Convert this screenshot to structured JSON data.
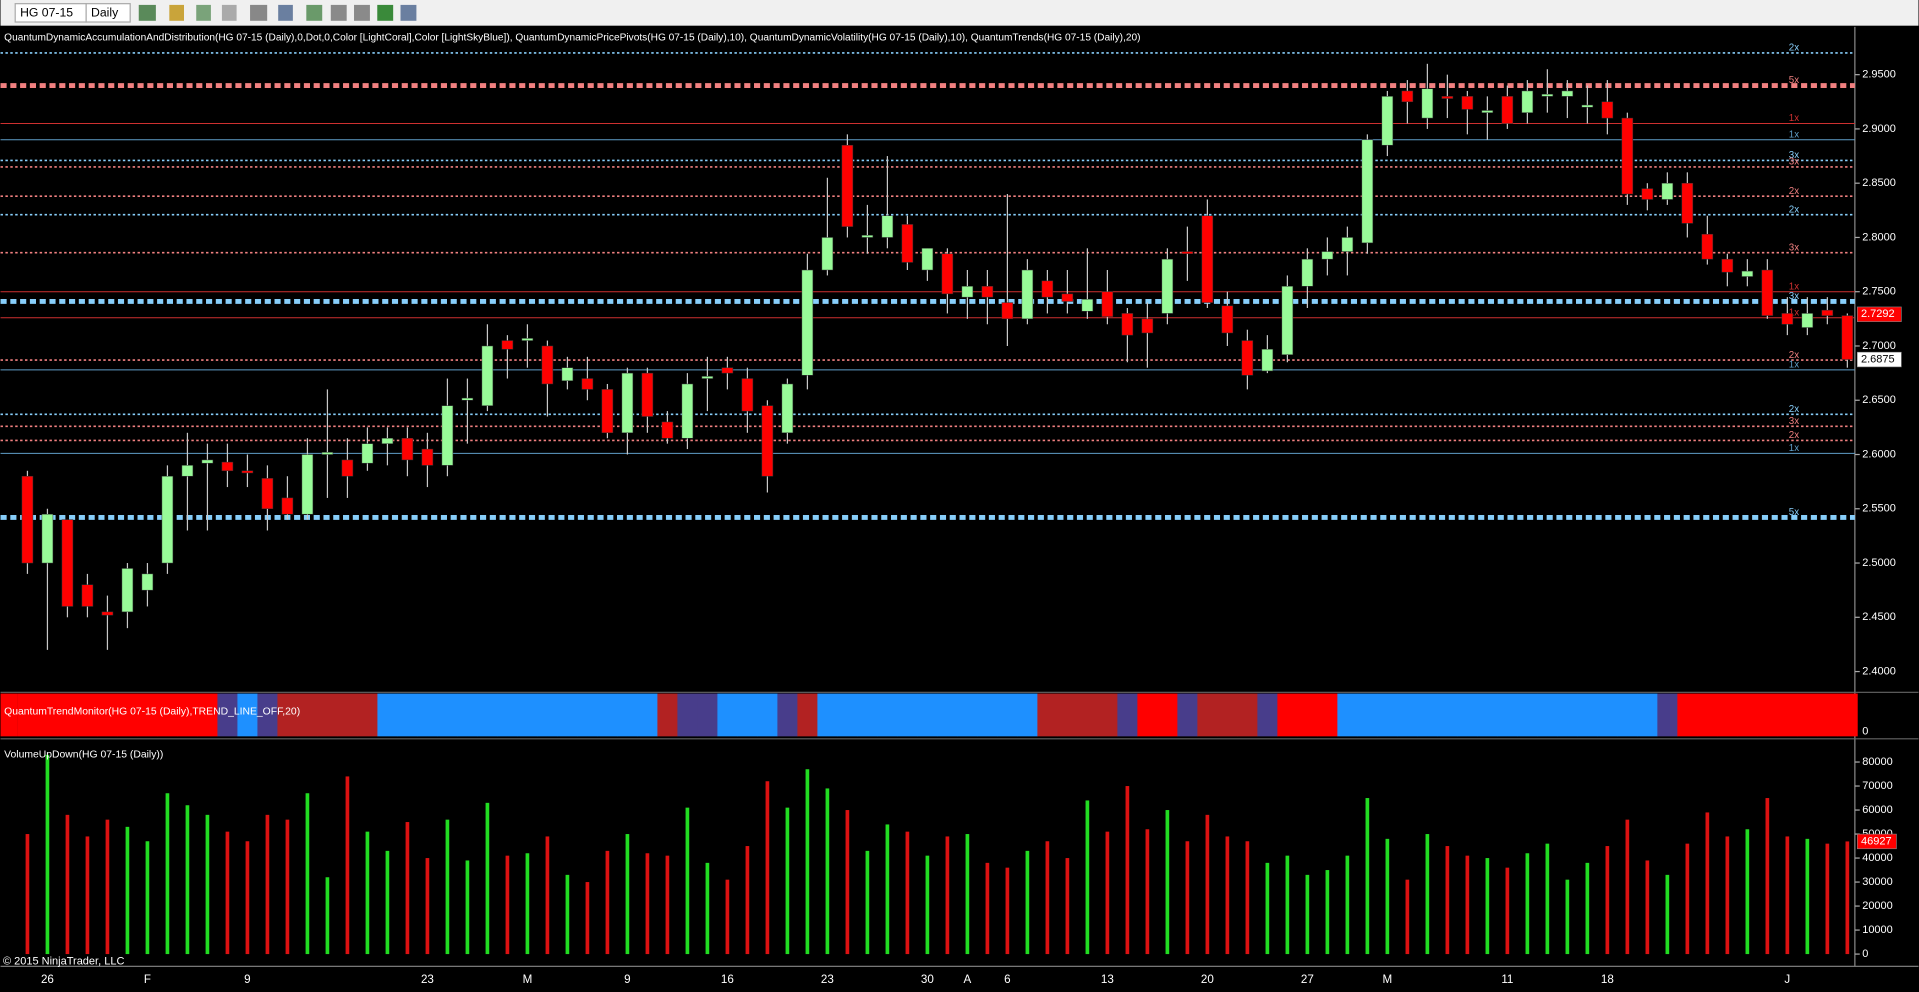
{
  "toolbar": {
    "instrument": "HG 07-15",
    "period": "Daily"
  },
  "chart_data": [
    {
      "type": "candlestick",
      "title": "QuantumDynamicAccumulationAndDistribution(HG 07-15 (Daily),0,Dot,0,Color [LightCoral],Color [LightSkyBlue]), QuantumDynamicPricePivots(HG 07-15 (Daily),10), QuantumDynamicVolatility(HG 07-15 (Daily),10), QuantumTrends(HG 07-15 (Daily),20)",
      "categories": [
        null,
        "26",
        null,
        null,
        null,
        null,
        "F",
        null,
        null,
        null,
        null,
        "9",
        null,
        null,
        null,
        null,
        null,
        null,
        null,
        null,
        "23",
        null,
        null,
        null,
        null,
        "M",
        null,
        null,
        null,
        null,
        "9",
        null,
        null,
        null,
        null,
        "16",
        null,
        null,
        null,
        null,
        "23",
        null,
        null,
        null,
        null,
        "30",
        null,
        "A",
        null,
        "6",
        null,
        null,
        null,
        null,
        "13",
        null,
        null,
        null,
        null,
        "20",
        null,
        null,
        null,
        null,
        "27",
        null,
        null,
        null,
        "M",
        null,
        null,
        null,
        null,
        null,
        "11",
        null,
        null,
        null,
        null,
        "18",
        null,
        null,
        null,
        null,
        null,
        null,
        null,
        null,
        "J",
        null,
        null,
        null
      ],
      "open": [
        2.58,
        2.5,
        2.54,
        2.48,
        2.455,
        2.455,
        2.475,
        2.5,
        2.58,
        2.592,
        2.593,
        2.585,
        2.578,
        2.56,
        2.545,
        2.6,
        2.595,
        2.592,
        2.61,
        2.615,
        2.605,
        2.59,
        2.65,
        2.645,
        2.705,
        2.705,
        2.7,
        2.668,
        2.67,
        2.66,
        2.62,
        2.675,
        2.63,
        2.615,
        2.67,
        2.68,
        2.67,
        2.645,
        2.62,
        2.673,
        2.77,
        2.885,
        2.8,
        2.8,
        2.812,
        2.77,
        2.785,
        2.745,
        2.755,
        2.74,
        2.725,
        2.76,
        2.748,
        2.732,
        2.75,
        2.73,
        2.725,
        2.73,
        2.787,
        2.82,
        2.737,
        2.705,
        2.677,
        2.692,
        2.755,
        2.78,
        2.787,
        2.795,
        2.885,
        2.935,
        2.91,
        2.93,
        2.93,
        2.915,
        2.93,
        2.915,
        2.93,
        2.93,
        2.92,
        2.925,
        2.91,
        2.845,
        2.835,
        2.85,
        2.803,
        2.78,
        2.764,
        2.77,
        2.73,
        2.717,
        2.733,
        2.728
      ],
      "high": [
        2.585,
        2.55,
        2.54,
        2.49,
        2.47,
        2.5,
        2.5,
        2.59,
        2.62,
        2.61,
        2.61,
        2.6,
        2.59,
        2.58,
        2.615,
        2.66,
        2.615,
        2.625,
        2.625,
        2.625,
        2.62,
        2.67,
        2.67,
        2.72,
        2.71,
        2.72,
        2.705,
        2.69,
        2.69,
        2.665,
        2.68,
        2.68,
        2.64,
        2.675,
        2.69,
        2.69,
        2.68,
        2.65,
        2.67,
        2.785,
        2.855,
        2.895,
        2.83,
        2.875,
        2.82,
        2.79,
        2.79,
        2.77,
        2.77,
        2.84,
        2.78,
        2.77,
        2.77,
        2.79,
        2.77,
        2.735,
        2.74,
        2.79,
        2.81,
        2.835,
        2.75,
        2.715,
        2.71,
        2.765,
        2.79,
        2.8,
        2.81,
        2.895,
        2.935,
        2.945,
        2.96,
        2.95,
        2.935,
        2.93,
        2.94,
        2.945,
        2.955,
        2.945,
        2.94,
        2.945,
        2.915,
        2.85,
        2.86,
        2.86,
        2.82,
        2.785,
        2.78,
        2.78,
        2.745,
        2.745,
        2.745,
        2.73
      ],
      "low": [
        2.49,
        2.42,
        2.45,
        2.45,
        2.42,
        2.44,
        2.46,
        2.49,
        2.53,
        2.53,
        2.57,
        2.57,
        2.53,
        2.54,
        2.54,
        2.56,
        2.56,
        2.585,
        2.59,
        2.58,
        2.57,
        2.58,
        2.61,
        2.64,
        2.67,
        2.68,
        2.635,
        2.66,
        2.65,
        2.615,
        2.6,
        2.62,
        2.61,
        2.605,
        2.64,
        2.66,
        2.62,
        2.565,
        2.61,
        2.66,
        2.765,
        2.8,
        2.785,
        2.79,
        2.77,
        2.76,
        2.73,
        2.725,
        2.72,
        2.7,
        2.72,
        2.73,
        2.73,
        2.725,
        2.72,
        2.685,
        2.68,
        2.72,
        2.76,
        2.735,
        2.7,
        2.66,
        2.675,
        2.685,
        2.735,
        2.765,
        2.765,
        2.785,
        2.875,
        2.905,
        2.9,
        2.91,
        2.895,
        2.89,
        2.9,
        2.905,
        2.915,
        2.91,
        2.905,
        2.895,
        2.83,
        2.825,
        2.83,
        2.8,
        2.775,
        2.755,
        2.755,
        2.725,
        2.71,
        2.71,
        2.72,
        2.68
      ],
      "close": [
        2.5,
        2.545,
        2.46,
        2.46,
        2.452,
        2.495,
        2.49,
        2.58,
        2.59,
        2.595,
        2.585,
        2.583,
        2.55,
        2.545,
        2.6,
        2.602,
        2.58,
        2.61,
        2.615,
        2.595,
        2.59,
        2.645,
        2.652,
        2.7,
        2.697,
        2.707,
        2.665,
        2.68,
        2.66,
        2.62,
        2.675,
        2.635,
        2.615,
        2.665,
        2.672,
        2.675,
        2.64,
        2.58,
        2.665,
        2.77,
        2.8,
        2.81,
        2.802,
        2.82,
        2.777,
        2.79,
        2.748,
        2.755,
        2.745,
        2.725,
        2.77,
        2.745,
        2.741,
        2.743,
        2.727,
        2.71,
        2.712,
        2.78,
        2.785,
        2.74,
        2.712,
        2.673,
        2.697,
        2.755,
        2.78,
        2.787,
        2.8,
        2.89,
        2.93,
        2.925,
        2.937,
        2.928,
        2.918,
        2.917,
        2.905,
        2.935,
        2.932,
        2.935,
        2.922,
        2.91,
        2.84,
        2.835,
        2.85,
        2.813,
        2.78,
        2.768,
        2.769,
        2.728,
        2.72,
        2.73,
        2.728,
        2.6875
      ],
      "up_color": "#98fb98",
      "down_color": "#ff0000",
      "ylim": [
        2.382,
        2.994
      ],
      "yticks": [
        {
          "value": 2.4,
          "label": "2.4000"
        },
        {
          "value": 2.45,
          "label": "2.4500"
        },
        {
          "value": 2.5,
          "label": "2.5000"
        },
        {
          "value": 2.55,
          "label": "2.5500"
        },
        {
          "value": 2.6,
          "label": "2.6000"
        },
        {
          "value": 2.65,
          "label": "2.6500"
        },
        {
          "value": 2.7,
          "label": "2.7000"
        },
        {
          "value": 2.75,
          "label": "2.7500"
        },
        {
          "value": 2.8,
          "label": "2.8000"
        },
        {
          "value": 2.85,
          "label": "2.8500"
        },
        {
          "value": 2.9,
          "label": "2.9000"
        },
        {
          "value": 2.95,
          "label": "2.9500"
        }
      ],
      "levels": [
        {
          "value": 2.97,
          "label": "2x",
          "color": "#87cefa",
          "style": "dotted"
        },
        {
          "value": 2.94,
          "label": "5x",
          "color": "#f08080",
          "style": "thick"
        },
        {
          "value": 2.905,
          "label": "1x",
          "color": "#cd3030",
          "style": "solid"
        },
        {
          "value": 2.89,
          "label": "1x",
          "color": "#5f9ec8",
          "style": "solid"
        },
        {
          "value": 2.871,
          "label": "3x",
          "color": "#87cefa",
          "style": "dotted"
        },
        {
          "value": 2.865,
          "label": "3x",
          "color": "#f08080",
          "style": "dotted"
        },
        {
          "value": 2.838,
          "label": "2x",
          "color": "#f08080",
          "style": "dotted"
        },
        {
          "value": 2.821,
          "label": "2x",
          "color": "#87cefa",
          "style": "dotted"
        },
        {
          "value": 2.786,
          "label": "3x",
          "color": "#f08080",
          "style": "dotted"
        },
        {
          "value": 2.75,
          "label": "1x",
          "color": "#cd3030",
          "style": "solid"
        },
        {
          "value": 2.741,
          "label": "3x",
          "color": "#87cefa",
          "style": "thick"
        },
        {
          "value": 2.726,
          "label": "1x",
          "color": "#cd3030",
          "style": "solid"
        },
        {
          "value": 2.687,
          "label": "2x",
          "color": "#f08080",
          "style": "dotted"
        },
        {
          "value": 2.678,
          "label": "1x",
          "color": "#5f9ec8",
          "style": "solid"
        },
        {
          "value": 2.637,
          "label": "2x",
          "color": "#87cefa",
          "style": "dotted"
        },
        {
          "value": 2.626,
          "label": "3x",
          "color": "#f08080",
          "style": "dotted"
        },
        {
          "value": 2.613,
          "label": "2x",
          "color": "#f08080",
          "style": "dotted"
        },
        {
          "value": 2.601,
          "label": "1x",
          "color": "#5f9ec8",
          "style": "solid"
        },
        {
          "value": 2.542,
          "label": "5x",
          "color": "#87cefa",
          "style": "thick"
        }
      ],
      "price_tags": [
        2.7292,
        2.6875
      ],
      "price_tag_colors": [
        "#ff0000",
        "#ffffff"
      ]
    },
    {
      "type": "trend-strip",
      "title": "QuantumTrendMonitor(HG 07-15 (Daily),TREND_LINE_OFF,20)",
      "yticks": [
        0
      ],
      "colors": [
        "#ff0000",
        "#ff0000",
        "#ff0000",
        "#ff0000",
        "#ff0000",
        "#ff0000",
        "#ff0000",
        "#ff0000",
        "#ff0000",
        "#ff0000",
        "#483d8b",
        "#1e90ff",
        "#483d8b",
        "#b22222",
        "#b22222",
        "#b22222",
        "#b22222",
        "#b22222",
        "#1e90ff",
        "#1e90ff",
        "#1e90ff",
        "#1e90ff",
        "#1e90ff",
        "#1e90ff",
        "#1e90ff",
        "#1e90ff",
        "#1e90ff",
        "#1e90ff",
        "#1e90ff",
        "#1e90ff",
        "#1e90ff",
        "#1e90ff",
        "#b22222",
        "#483d8b",
        "#483d8b",
        "#1e90ff",
        "#1e90ff",
        "#1e90ff",
        "#483d8b",
        "#b22222",
        "#1e90ff",
        "#1e90ff",
        "#1e90ff",
        "#1e90ff",
        "#1e90ff",
        "#1e90ff",
        "#1e90ff",
        "#1e90ff",
        "#1e90ff",
        "#1e90ff",
        "#1e90ff",
        "#b22222",
        "#b22222",
        "#b22222",
        "#b22222",
        "#483d8b",
        "#ff0000",
        "#ff0000",
        "#483d8b",
        "#b22222",
        "#b22222",
        "#b22222",
        "#483d8b",
        "#ff0000",
        "#ff0000",
        "#ff0000",
        "#1e90ff",
        "#1e90ff",
        "#1e90ff",
        "#1e90ff",
        "#1e90ff",
        "#1e90ff",
        "#1e90ff",
        "#1e90ff",
        "#1e90ff",
        "#1e90ff",
        "#1e90ff",
        "#1e90ff",
        "#1e90ff",
        "#1e90ff",
        "#1e90ff",
        "#1e90ff",
        "#483d8b",
        "#ff0000",
        "#ff0000",
        "#ff0000",
        "#ff0000",
        "#ff0000",
        "#ff0000",
        "#ff0000",
        "#ff0000",
        "#ff0000"
      ]
    },
    {
      "type": "bar",
      "title": "VolumeUpDown(HG 07-15 (Daily))",
      "values": [
        50000,
        83000,
        58000,
        49000,
        56000,
        53000,
        47000,
        67000,
        62000,
        58000,
        51000,
        47000,
        58000,
        56000,
        67000,
        32000,
        74000,
        51000,
        43000,
        55000,
        40000,
        56000,
        39000,
        63000,
        41000,
        42000,
        49000,
        33000,
        30000,
        43000,
        50000,
        42000,
        41000,
        61000,
        38000,
        31000,
        45000,
        72000,
        61000,
        77000,
        69000,
        60000,
        43000,
        54000,
        51000,
        41000,
        49000,
        50000,
        38000,
        36000,
        43000,
        47000,
        40000,
        64000,
        51000,
        70000,
        52000,
        60000,
        47000,
        58000,
        49000,
        47000,
        38000,
        41000,
        33000,
        35000,
        41000,
        65000,
        48000,
        31000,
        50000,
        45000,
        41000,
        40000,
        36000,
        42000,
        46000,
        31000,
        38000,
        45000,
        56000,
        39000,
        33000,
        46000,
        59000,
        49000,
        52000,
        65000,
        49000,
        48000,
        46000,
        46927
      ],
      "up_color": "#22dd22",
      "down_color": "#dd1111",
      "ylim": [
        0,
        85600
      ],
      "yticks": [
        0,
        10000,
        20000,
        30000,
        40000,
        50000,
        60000,
        70000,
        80000
      ]
    }
  ],
  "copyright": "© 2015 NinjaTrader, LLC"
}
